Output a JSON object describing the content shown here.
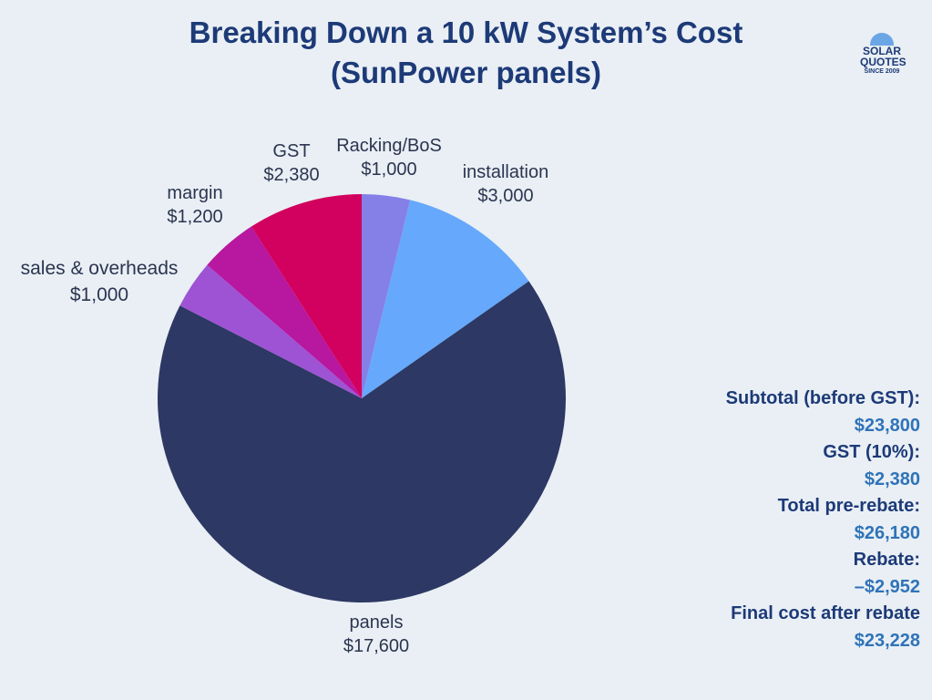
{
  "title_line1": "Breaking Down a 10 kW System’s Cost",
  "title_line2": "(SunPower panels)",
  "logo": {
    "line1": "SOLAR",
    "line2": "QUOTES",
    "line3": "SINCE 2009"
  },
  "chart_data": {
    "type": "pie",
    "slices": [
      {
        "label": "Racking/BoS",
        "value_text": "$1,000",
        "value": 1000,
        "color": "#8480e8"
      },
      {
        "label": "installation",
        "value_text": "$3,000",
        "value": 3000,
        "color": "#66a8fb"
      },
      {
        "label": "panels",
        "value_text": "$17,600",
        "value": 17600,
        "color": "#2d3864"
      },
      {
        "label": "sales & overheads",
        "value_text": "$1,000",
        "value": 1000,
        "color": "#9e53d4"
      },
      {
        "label": "margin",
        "value_text": "$1,200",
        "value": 1200,
        "color": "#b8179f"
      },
      {
        "label": "GST",
        "value_text": "$2,380",
        "value": 2380,
        "color": "#d2005e"
      }
    ],
    "start_angle_deg": 0,
    "direction": "clockwise"
  },
  "summary": [
    {
      "label": "Subtotal (before GST): ",
      "value": "$23,800"
    },
    {
      "label": "GST (10%): ",
      "value": "$2,380"
    },
    {
      "label": "Total pre-rebate: ",
      "value": "$26,180"
    },
    {
      "label": "Rebate:",
      "value": "–$2,952"
    },
    {
      "label": "Final cost after rebate",
      "value": "$23,228"
    }
  ]
}
